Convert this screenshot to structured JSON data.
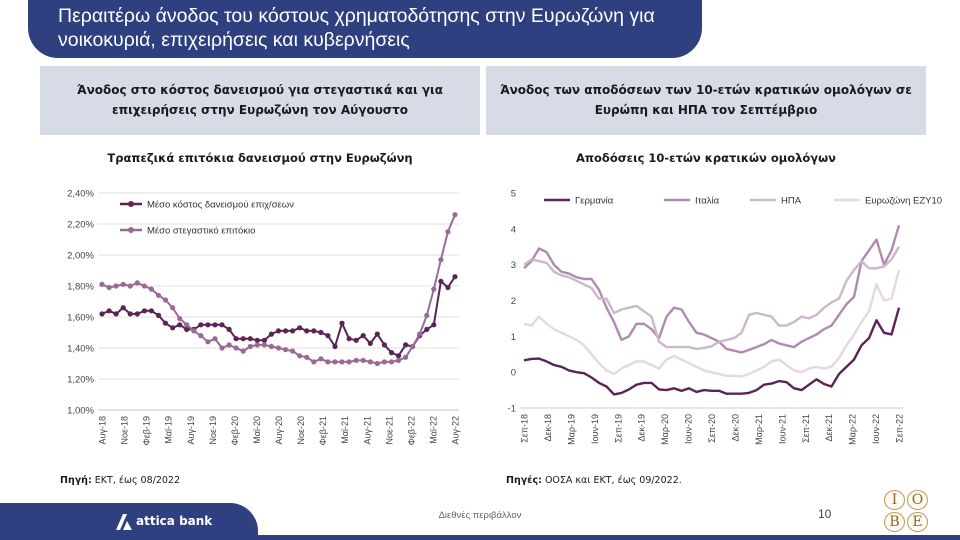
{
  "page_title": {
    "line1": "Περαιτέρω άνοδος του κόστους χρηματοδότησης στην Ευρωζώνη για",
    "line2": "νοικοκυριά, επιχειρήσεις και κυβερνήσεις"
  },
  "left_panel": {
    "header_line1": "Άνοδος στο κόστος δανεισμού για στεγαστικά και για",
    "header_line2": "επιχειρήσεις στην Ευρωζώνη τον Αύγουστο",
    "source_label": "Πηγή:",
    "source_text": "ΕΚΤ, έως 08/2022"
  },
  "right_panel": {
    "header_line1": "Άνοδος των αποδόσεων των 10-ετών κρατικών ομολόγων σε",
    "header_line2": "Ευρώπη και ΗΠΑ τον Σεπτέμβριο",
    "source_label": "Πηγές:",
    "source_text": "ΟΟΣΑ και ΕΚΤ, έως 09/2022."
  },
  "footer": {
    "brand": "attica bank",
    "section": "Διεθνές περιβάλλον",
    "page_number": "10",
    "partner_logo_letters": [
      "I",
      "O",
      "B",
      "E"
    ]
  },
  "chart_data": [
    {
      "type": "line",
      "title": "Τραπεζικά επιτόκια δανεισμού στην Ευρωζώνη",
      "xlabel": "",
      "ylabel": "",
      "ylim": [
        1.0,
        2.4
      ],
      "y_ticks": [
        "1,00%",
        "1,20%",
        "1,40%",
        "1,60%",
        "1,80%",
        "2,00%",
        "2,20%",
        "2,40%"
      ],
      "x_tick_labels": [
        "Αυγ-18",
        "Νοε-18",
        "Φεβ-19",
        "Μαϊ-19",
        "Αυγ-19",
        "Νοε-19",
        "Φεβ-20",
        "Μαϊ-20",
        "Αυγ-20",
        "Νοε-20",
        "Φεβ-21",
        "Μαϊ-21",
        "Αυγ-21",
        "Νοε-21",
        "Φεβ-22",
        "Μαϊ-22",
        "Αυγ-22"
      ],
      "x_start": "2018-08",
      "x_end": "2022-08",
      "grid": "horizontal",
      "legend_position": "top-left",
      "series": [
        {
          "name": "Μέσο κόστος δανεισμού επιχ/σεων",
          "color": "#5a2555",
          "values": [
            1.62,
            1.64,
            1.62,
            1.66,
            1.62,
            1.62,
            1.64,
            1.64,
            1.61,
            1.56,
            1.53,
            1.55,
            1.52,
            1.52,
            1.55,
            1.55,
            1.55,
            1.55,
            1.52,
            1.46,
            1.46,
            1.46,
            1.45,
            1.45,
            1.49,
            1.51,
            1.51,
            1.51,
            1.53,
            1.51,
            1.51,
            1.5,
            1.48,
            1.41,
            1.56,
            1.46,
            1.45,
            1.48,
            1.43,
            1.49,
            1.42,
            1.37,
            1.35,
            1.42,
            1.41,
            1.48,
            1.52,
            1.55,
            1.83,
            1.79,
            1.86
          ]
        },
        {
          "name": "Μέσο στεγαστικό επιτόκιο",
          "color": "#9a6a96",
          "values": [
            1.81,
            1.79,
            1.8,
            1.81,
            1.8,
            1.82,
            1.8,
            1.78,
            1.74,
            1.71,
            1.66,
            1.59,
            1.55,
            1.51,
            1.48,
            1.44,
            1.46,
            1.4,
            1.42,
            1.4,
            1.38,
            1.41,
            1.42,
            1.42,
            1.41,
            1.4,
            1.39,
            1.38,
            1.35,
            1.34,
            1.31,
            1.33,
            1.31,
            1.31,
            1.31,
            1.31,
            1.32,
            1.32,
            1.31,
            1.3,
            1.31,
            1.31,
            1.32,
            1.34,
            1.41,
            1.49,
            1.61,
            1.78,
            1.97,
            2.15,
            2.26
          ]
        }
      ]
    },
    {
      "type": "line",
      "title": "Αποδόσεις 10-ετών κρατικών ομολόγων",
      "xlabel": "",
      "ylabel": "",
      "ylim": [
        -1,
        5
      ],
      "y_ticks": [
        "-1",
        "0",
        "1",
        "2",
        "3",
        "4",
        "5"
      ],
      "x_tick_labels": [
        "Σεπ-18",
        "Δεκ-18",
        "Μαρ-19",
        "Ιουν-19",
        "Σεπ-19",
        "Δεκ-19",
        "Μαρ-20",
        "Ιουν-20",
        "Σεπ-20",
        "Δεκ-20",
        "Μαρ-21",
        "Ιουν-21",
        "Σεπ-21",
        "Δεκ-21",
        "Μαρ-22",
        "Ιουν-22",
        "Σεπ-22"
      ],
      "x_start": "2018-09",
      "x_end": "2022-09",
      "grid": "none",
      "legend_position": "top",
      "series": [
        {
          "name": "Γερμανία",
          "color": "#5a2555",
          "values": [
            0.33,
            0.37,
            0.38,
            0.3,
            0.2,
            0.15,
            0.05,
            0.0,
            -0.03,
            -0.15,
            -0.3,
            -0.4,
            -0.62,
            -0.58,
            -0.48,
            -0.35,
            -0.3,
            -0.3,
            -0.48,
            -0.5,
            -0.45,
            -0.52,
            -0.45,
            -0.55,
            -0.5,
            -0.52,
            -0.52,
            -0.6,
            -0.6,
            -0.6,
            -0.58,
            -0.5,
            -0.35,
            -0.32,
            -0.25,
            -0.28,
            -0.45,
            -0.5,
            -0.35,
            -0.2,
            -0.33,
            -0.4,
            -0.05,
            0.15,
            0.35,
            0.75,
            0.95,
            1.45,
            1.1,
            1.05,
            1.8
          ]
        },
        {
          "name": "Ιταλία",
          "color": "#b08ab0",
          "values": [
            2.9,
            3.1,
            3.45,
            3.35,
            3.0,
            2.8,
            2.75,
            2.65,
            2.6,
            2.6,
            2.3,
            1.8,
            1.4,
            0.9,
            1.0,
            1.35,
            1.35,
            1.2,
            0.95,
            1.55,
            1.8,
            1.75,
            1.4,
            1.1,
            1.05,
            0.95,
            0.85,
            0.65,
            0.6,
            0.55,
            0.62,
            0.7,
            0.78,
            0.9,
            0.8,
            0.75,
            0.7,
            0.85,
            0.95,
            1.05,
            1.2,
            1.3,
            1.6,
            1.9,
            2.1,
            3.1,
            3.4,
            3.7,
            3.0,
            3.4,
            4.1
          ]
        },
        {
          "name": "ΗΠΑ",
          "color": "#cbb8cb",
          "values": [
            3.0,
            3.15,
            3.1,
            3.05,
            2.8,
            2.7,
            2.65,
            2.55,
            2.45,
            2.35,
            2.05,
            2.05,
            1.65,
            1.75,
            1.8,
            1.85,
            1.7,
            1.55,
            0.85,
            0.7,
            0.7,
            0.7,
            0.7,
            0.65,
            0.68,
            0.72,
            0.85,
            0.9,
            0.95,
            1.1,
            1.6,
            1.65,
            1.6,
            1.55,
            1.3,
            1.3,
            1.4,
            1.55,
            1.5,
            1.6,
            1.8,
            1.95,
            2.05,
            2.55,
            2.85,
            3.1,
            2.9,
            2.9,
            2.95,
            3.15,
            3.5
          ]
        },
        {
          "name": "Ευρωζώνη ΕΖΥ10",
          "color": "#e3d8e3",
          "values": [
            1.35,
            1.3,
            1.55,
            1.35,
            1.2,
            1.1,
            1.0,
            0.9,
            0.75,
            0.5,
            0.25,
            0.05,
            -0.05,
            0.1,
            0.2,
            0.3,
            0.3,
            0.2,
            0.1,
            0.35,
            0.45,
            0.35,
            0.25,
            0.15,
            0.05,
            0.0,
            -0.05,
            -0.1,
            -0.1,
            -0.12,
            -0.05,
            0.05,
            0.15,
            0.3,
            0.35,
            0.2,
            0.05,
            0.0,
            0.1,
            0.15,
            0.1,
            0.15,
            0.4,
            0.75,
            1.05,
            1.4,
            1.7,
            2.45,
            2.0,
            2.05,
            2.85
          ]
        }
      ]
    }
  ]
}
